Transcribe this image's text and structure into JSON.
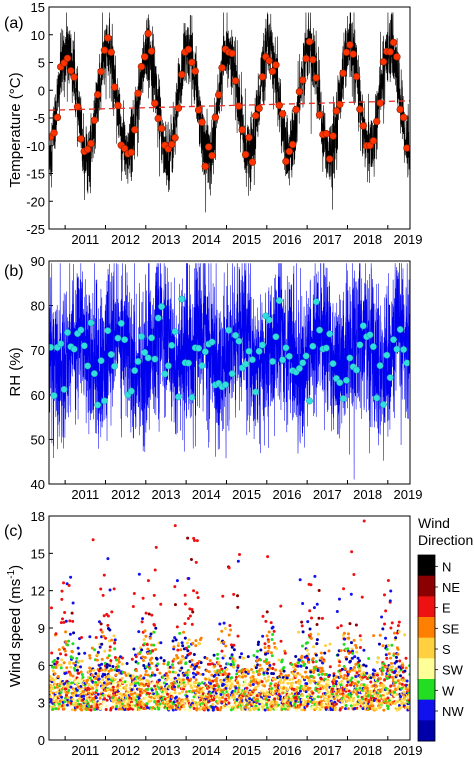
{
  "chart_data": [
    {
      "type": "line",
      "panel_label": "(a)",
      "ylabel": "Temperature (°C)",
      "ylim": [
        -25,
        15
      ],
      "yticks": [
        -25,
        -20,
        -15,
        -10,
        -5,
        0,
        5,
        10,
        15
      ],
      "xlim": [
        2010.6,
        2019.55
      ],
      "x_tick_labels": [
        "2011",
        "2012",
        "2013",
        "2014",
        "2015",
        "2016",
        "2017",
        "2018",
        "2019"
      ],
      "series": [
        {
          "kind": "daily",
          "color": "#000000",
          "mean": -2.5,
          "amplitude": 9.5,
          "noise": 5.5
        },
        {
          "kind": "monthly-mean",
          "color": "#ff3300",
          "mean": -2.6,
          "amplitude": 9.2
        },
        {
          "kind": "trend",
          "color": "#e8302a",
          "dash": true,
          "points": [
            [
              2010.6,
              -3.6
            ],
            [
              2019.55,
              -1.9
            ]
          ]
        }
      ]
    },
    {
      "type": "line",
      "panel_label": "(b)",
      "ylabel": "RH (%)",
      "ylim": [
        40,
        90
      ],
      "yticks": [
        40,
        50,
        60,
        70,
        80,
        90
      ],
      "xlim": [
        2010.6,
        2019.55
      ],
      "x_tick_labels": [
        "2011",
        "2012",
        "2013",
        "2014",
        "2015",
        "2016",
        "2017",
        "2018",
        "2019"
      ],
      "series": [
        {
          "kind": "daily",
          "color": "#0000ee",
          "mean": 70,
          "noise": 12
        },
        {
          "kind": "monthly-mean",
          "color": "#33dddd",
          "mean": 69,
          "spread": 7
        }
      ]
    },
    {
      "type": "scatter",
      "panel_label": "(c)",
      "ylabel": "Wind speed (ms⁻¹)",
      "ylim": [
        0,
        18
      ],
      "yticks": [
        0,
        3,
        6,
        9,
        12,
        15,
        18
      ],
      "xlim": [
        2010.6,
        2019.55
      ],
      "x_tick_labels": [
        "2011",
        "2012",
        "2013",
        "2014",
        "2015",
        "2016",
        "2017",
        "2018",
        "2019"
      ],
      "legend_title_line1": "Wind",
      "legend_title_line2": "Direction",
      "legend_placement": "right",
      "legend_entries": [
        "N",
        "NE",
        "E",
        "SE",
        "S",
        "SW",
        "W",
        "NW"
      ],
      "direction_colors": [
        "#000000",
        "#8b0000",
        "#ee1111",
        "#ff8000",
        "#ffd040",
        "#ffff99",
        "#22dd22",
        "#1111ee",
        "#0000aa"
      ]
    }
  ]
}
